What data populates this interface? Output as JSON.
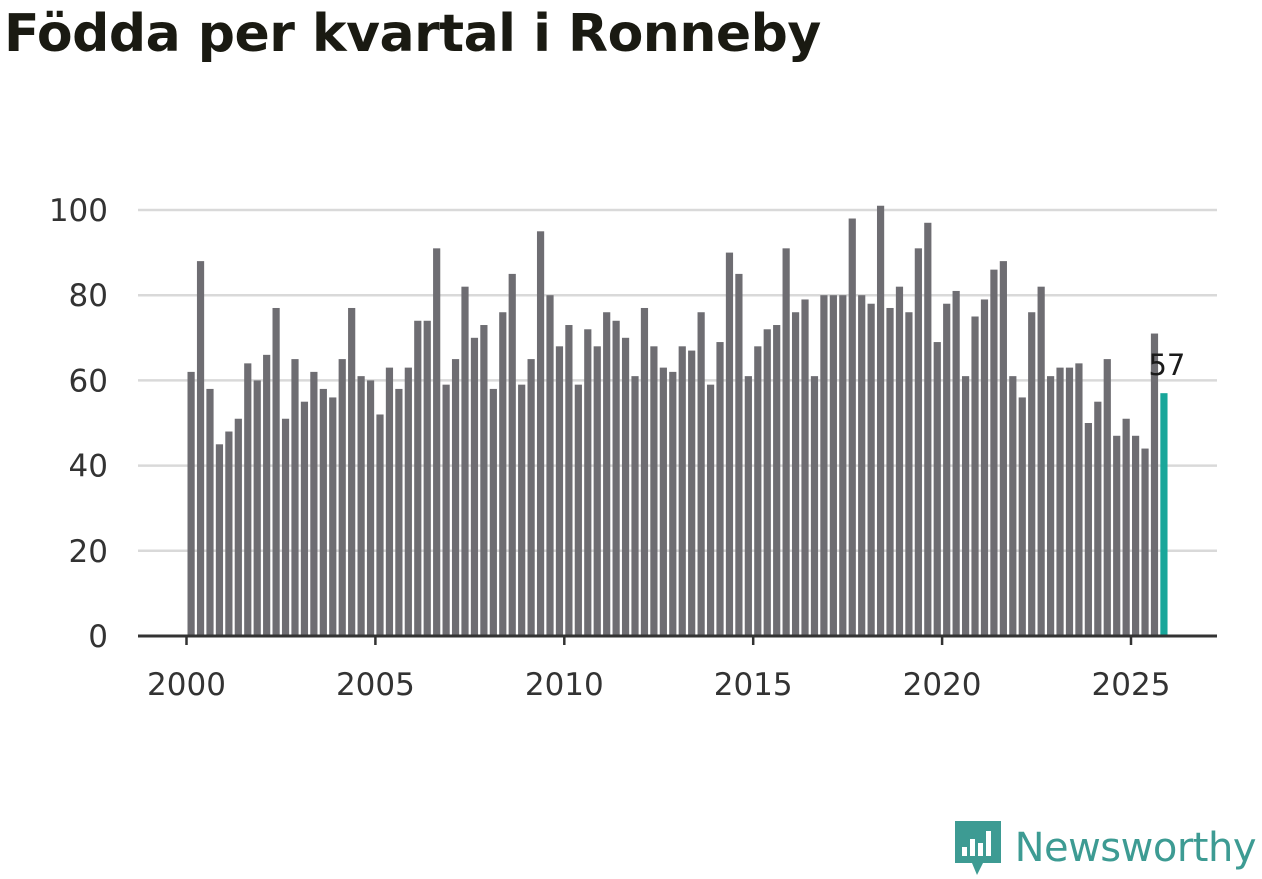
{
  "title": "Födda per kvartal i Ronneby",
  "brand": {
    "name": "Newsworthy",
    "icon": "newsworthy-logo-icon",
    "color": "#3d9b93"
  },
  "colors": {
    "bar": "#6e6d72",
    "highlight": "#18a69a",
    "grid": "#d9d9d9",
    "axis": "#333333"
  },
  "chart_data": {
    "type": "bar",
    "title": "Födda per kvartal i Ronneby",
    "xlabel": "",
    "ylabel": "",
    "ylim": [
      0,
      100
    ],
    "yticks": [
      0,
      20,
      40,
      60,
      80,
      100
    ],
    "xticks": [
      2000,
      2005,
      2010,
      2015,
      2020,
      2025
    ],
    "start": "2000 Q1",
    "frequency": "quarterly",
    "grid": true,
    "highlight_last": true,
    "last_label": "57",
    "categories": [
      "2000 Q1",
      "2000 Q2",
      "2000 Q3",
      "2000 Q4",
      "2001 Q1",
      "2001 Q2",
      "2001 Q3",
      "2001 Q4",
      "2002 Q1",
      "2002 Q2",
      "2002 Q3",
      "2002 Q4",
      "2003 Q1",
      "2003 Q2",
      "2003 Q3",
      "2003 Q4",
      "2004 Q1",
      "2004 Q2",
      "2004 Q3",
      "2004 Q4",
      "2005 Q1",
      "2005 Q2",
      "2005 Q3",
      "2005 Q4",
      "2006 Q1",
      "2006 Q2",
      "2006 Q3",
      "2006 Q4",
      "2007 Q1",
      "2007 Q2",
      "2007 Q3",
      "2007 Q4",
      "2008 Q1",
      "2008 Q2",
      "2008 Q3",
      "2008 Q4",
      "2009 Q1",
      "2009 Q2",
      "2009 Q3",
      "2009 Q4",
      "2010 Q1",
      "2010 Q2",
      "2010 Q3",
      "2010 Q4",
      "2011 Q1",
      "2011 Q2",
      "2011 Q3",
      "2011 Q4",
      "2012 Q1",
      "2012 Q2",
      "2012 Q3",
      "2012 Q4",
      "2013 Q1",
      "2013 Q2",
      "2013 Q3",
      "2013 Q4",
      "2014 Q1",
      "2014 Q2",
      "2014 Q3",
      "2014 Q4",
      "2015 Q1",
      "2015 Q2",
      "2015 Q3",
      "2015 Q4",
      "2016 Q1",
      "2016 Q2",
      "2016 Q3",
      "2016 Q4",
      "2017 Q1",
      "2017 Q2",
      "2017 Q3",
      "2017 Q4",
      "2018 Q1",
      "2018 Q2",
      "2018 Q3",
      "2018 Q4",
      "2019 Q1",
      "2019 Q2",
      "2019 Q3",
      "2019 Q4",
      "2020 Q1",
      "2020 Q2",
      "2020 Q3",
      "2020 Q4",
      "2021 Q1",
      "2021 Q2",
      "2021 Q3",
      "2021 Q4",
      "2022 Q1",
      "2022 Q2",
      "2022 Q3",
      "2022 Q4",
      "2023 Q1",
      "2023 Q2",
      "2023 Q3",
      "2023 Q4",
      "2024 Q1",
      "2024 Q2",
      "2024 Q3",
      "2024 Q4",
      "2025 Q1",
      "2025 Q2",
      "2025 Q3",
      "2025 Q4"
    ],
    "values": [
      62,
      88,
      58,
      45,
      48,
      51,
      64,
      60,
      66,
      77,
      51,
      65,
      55,
      62,
      58,
      56,
      65,
      77,
      61,
      60,
      52,
      63,
      58,
      63,
      74,
      74,
      91,
      59,
      65,
      82,
      70,
      73,
      58,
      76,
      85,
      59,
      65,
      95,
      80,
      68,
      73,
      59,
      72,
      68,
      76,
      74,
      70,
      61,
      77,
      68,
      63,
      62,
      68,
      67,
      76,
      59,
      69,
      90,
      85,
      61,
      68,
      72,
      73,
      91,
      76,
      79,
      61,
      80,
      80,
      80,
      98,
      80,
      78,
      101,
      77,
      82,
      76,
      91,
      97,
      69,
      78,
      81,
      61,
      75,
      79,
      86,
      88,
      61,
      56,
      76,
      82,
      61,
      63,
      63,
      64,
      50,
      55,
      65,
      47,
      51,
      47,
      44,
      71,
      57
    ]
  }
}
